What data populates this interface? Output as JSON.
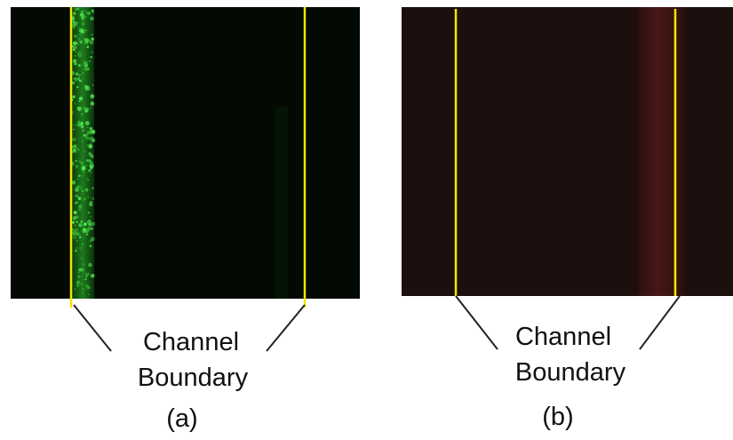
{
  "panels": [
    {
      "label": "(a)",
      "annotation": [
        "Channel",
        "Boundary"
      ]
    },
    {
      "label": "(b)",
      "annotation": [
        "Channel",
        "Boundary"
      ]
    }
  ]
}
